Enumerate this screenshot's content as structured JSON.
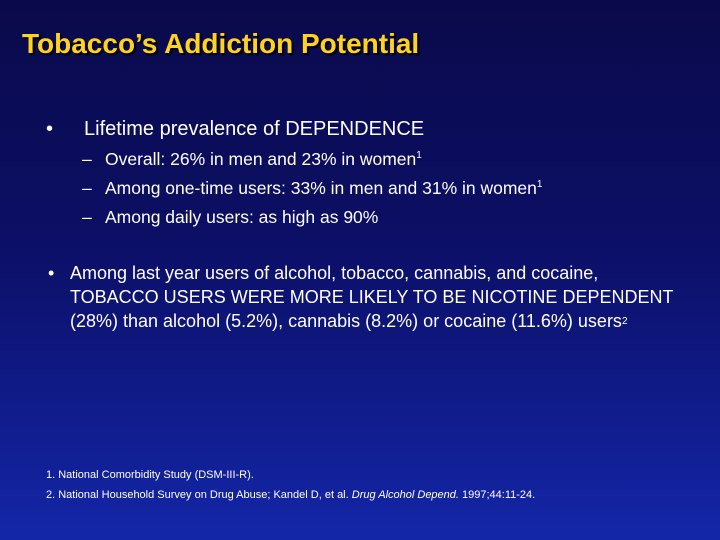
{
  "slide": {
    "title": "Tobacco’s Addiction Potential",
    "bullet1": {
      "marker": "•",
      "text": "Lifetime prevalence of DEPENDENCE",
      "subs": [
        {
          "marker": "–",
          "text": "Overall:  26% in men and 23% in women",
          "sup": "1"
        },
        {
          "marker": "–",
          "text": "Among one-time users:  33% in men and 31% in women",
          "sup": "1"
        },
        {
          "marker": "–",
          "text": "Among daily users:  as high as 90%",
          "sup": ""
        }
      ]
    },
    "bullet2": {
      "marker": "•",
      "text": "Among last year users of alcohol, tobacco, cannabis, and cocaine, TOBACCO USERS WERE MORE LIKELY TO BE NICOTINE DEPENDENT (28%) than alcohol (5.2%), cannabis (8.2%) or cocaine (11.6%) users",
      "sup": "2"
    },
    "references": {
      "ref1": "1. National Comorbidity Study (DSM-III-R).",
      "ref2_pre": "2. National Household Survey on Drug Abuse; Kandel D, et al. ",
      "ref2_journal": "Drug Alcohol Depend.",
      "ref2_post": " 1997;44:11-24."
    }
  },
  "colors": {
    "title": "#ffd21f",
    "text": "#ffffff",
    "background_top": "#0a0a4a",
    "background_bottom": "#1426a8"
  }
}
